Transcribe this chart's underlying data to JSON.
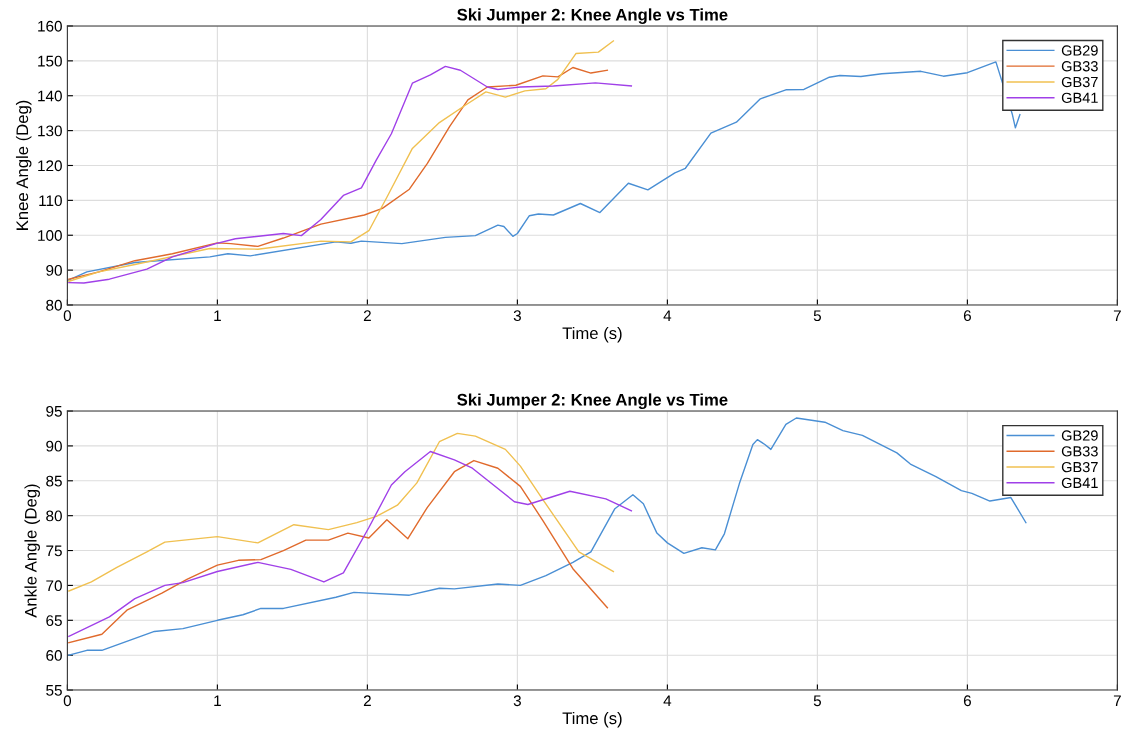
{
  "chart_data": [
    {
      "type": "line",
      "title": "Ski Jumper 2: Knee Angle vs Time",
      "xlabel": "Time (s)",
      "ylabel": "Knee Angle (Deg)",
      "xlim": [
        0,
        7
      ],
      "xticks": [
        0,
        1,
        2,
        3,
        4,
        5,
        6,
        7
      ],
      "ylim": [
        80,
        160
      ],
      "yticks": [
        80,
        90,
        100,
        110,
        120,
        130,
        140,
        150,
        160
      ],
      "grid": true,
      "legend": "top right",
      "line_style": "solid",
      "marker": "none",
      "series": [
        {
          "name": "GB29",
          "color": "#4a8fd4",
          "x": [
            0,
            0.13,
            0.45,
            0.95,
            1.07,
            1.22,
            1.79,
            1.89,
            1.96,
            2.23,
            2.52,
            2.72,
            2.87,
            2.91,
            2.97,
            3.0,
            3.08,
            3.14,
            3.24,
            3.42,
            3.55,
            3.74,
            3.87,
            4.05,
            4.12,
            4.29,
            4.46,
            4.62,
            4.79,
            4.91,
            5.08,
            5.15,
            5.29,
            5.43,
            5.69,
            5.84,
            6.0,
            6.19,
            6.3,
            6.32,
            6.35
          ],
          "values": [
            87,
            89.5,
            92.2,
            93.8,
            94.7,
            94.1,
            98.1,
            97.7,
            98.3,
            97.6,
            99.4,
            99.9,
            102.9,
            102.5,
            99.7,
            100.5,
            105.6,
            106.1,
            105.8,
            109.1,
            106.5,
            114.9,
            113,
            117.9,
            119.2,
            129.3,
            132.4,
            139.1,
            141.7,
            141.8,
            145.3,
            145.8,
            145.5,
            146.3,
            147,
            145.6,
            146.6,
            149.7,
            134.6,
            130.8,
            134.6
          ]
        },
        {
          "name": "GB33",
          "color": "#e06a2c",
          "x": [
            0.01,
            0.21,
            0.45,
            0.7,
            1.0,
            1.09,
            1.27,
            1.44,
            1.69,
            1.98,
            2.1,
            2.28,
            2.4,
            2.55,
            2.67,
            2.8,
            2.99,
            3.17,
            3.27,
            3.37,
            3.49,
            3.6
          ],
          "values": [
            87.4,
            89.5,
            92.7,
            94.7,
            97.8,
            97.6,
            96.8,
            99.2,
            103.2,
            105.8,
            107.7,
            113.2,
            120.6,
            131.3,
            138.8,
            142.5,
            143,
            145.7,
            145.4,
            148.1,
            146.5,
            147.3
          ]
        },
        {
          "name": "GB37",
          "color": "#f0c050",
          "x": [
            0.01,
            0.21,
            0.45,
            0.95,
            1.27,
            1.69,
            1.89,
            2.01,
            2.13,
            2.3,
            2.48,
            2.65,
            2.79,
            2.92,
            3.05,
            3.19,
            3.27,
            3.39,
            3.54,
            3.64
          ],
          "values": [
            86.8,
            89.5,
            91.6,
            96.2,
            96,
            98.3,
            98.1,
            101.3,
            110.9,
            124.9,
            132.3,
            137.2,
            141.1,
            139.6,
            141.4,
            142,
            144.7,
            152.1,
            152.5,
            155.7
          ]
        },
        {
          "name": "GB41",
          "color": "#a040e8",
          "x": [
            0.01,
            0.11,
            0.28,
            0.53,
            0.7,
            0.99,
            1.12,
            1.44,
            1.56,
            1.69,
            1.84,
            1.96,
            2.06,
            2.16,
            2.3,
            2.42,
            2.52,
            2.62,
            2.8,
            2.87,
            3.02,
            3.24,
            3.52,
            3.76
          ],
          "values": [
            86.4,
            86.3,
            87.4,
            90.3,
            93.8,
            97.6,
            99,
            100.5,
            99.9,
            104.5,
            111.4,
            113.6,
            121.6,
            129.1,
            143.6,
            146,
            148.4,
            147.3,
            142.5,
            141.8,
            142.5,
            142.8,
            143.7,
            142.8
          ]
        }
      ]
    },
    {
      "type": "line",
      "title": "Ski Jumper 2: Knee Angle vs Time",
      "xlabel": "Time (s)",
      "ylabel": "Ankle Angle (Deg)",
      "xlim": [
        0,
        7
      ],
      "xticks": [
        0,
        1,
        2,
        3,
        4,
        5,
        6,
        7
      ],
      "ylim": [
        55,
        95
      ],
      "yticks": [
        55,
        60,
        65,
        70,
        75,
        80,
        85,
        90,
        95
      ],
      "grid": true,
      "legend": "top right",
      "line_style": "solid",
      "marker": "none",
      "series": [
        {
          "name": "GB29",
          "color": "#4a8fd4",
          "x": [
            0.01,
            0.13,
            0.23,
            0.58,
            0.77,
            1.0,
            1.17,
            1.29,
            1.44,
            1.79,
            1.91,
            2.28,
            2.48,
            2.58,
            2.87,
            3.02,
            3.19,
            3.37,
            3.49,
            3.65,
            3.77,
            3.84,
            3.93,
            4.0,
            4.11,
            4.23,
            4.32,
            4.38,
            4.48,
            4.57,
            4.6,
            4.65,
            4.69,
            4.79,
            4.86,
            5.05,
            5.17,
            5.3,
            5.53,
            5.62,
            5.79,
            5.96,
            6.03,
            6.15,
            6.29,
            6.39
          ],
          "values": [
            60,
            60.7,
            60.7,
            63.4,
            63.8,
            65,
            65.8,
            66.7,
            66.7,
            68.3,
            69,
            68.6,
            69.6,
            69.5,
            70.2,
            70,
            71.4,
            73.3,
            74.8,
            81,
            83,
            81.7,
            77.5,
            76.1,
            74.6,
            75.4,
            75.1,
            77.4,
            84.6,
            90.2,
            90.9,
            90.2,
            89.5,
            93.1,
            94,
            93.4,
            92.2,
            91.5,
            89,
            87.4,
            85.6,
            83.6,
            83.2,
            82.1,
            82.6,
            79
          ]
        },
        {
          "name": "GB33",
          "color": "#e06a2c",
          "x": [
            0.01,
            0.23,
            0.4,
            0.63,
            0.8,
            1.0,
            1.14,
            1.29,
            1.44,
            1.59,
            1.74,
            1.87,
            2.01,
            2.13,
            2.27,
            2.4,
            2.58,
            2.71,
            2.87,
            3.02,
            3.17,
            3.37,
            3.6
          ],
          "values": [
            61.8,
            63,
            66.5,
            68.9,
            70.9,
            72.9,
            73.6,
            73.7,
            75,
            76.5,
            76.5,
            77.5,
            76.8,
            79.4,
            76.7,
            81.2,
            86.3,
            87.9,
            86.8,
            84.2,
            79.3,
            72.4,
            66.8
          ]
        },
        {
          "name": "GB37",
          "color": "#f0c050",
          "x": [
            0.01,
            0.16,
            0.33,
            0.53,
            0.65,
            1.0,
            1.27,
            1.51,
            1.74,
            1.93,
            2.06,
            2.2,
            2.33,
            2.48,
            2.6,
            2.72,
            2.92,
            3.02,
            3.17,
            3.41,
            3.64
          ],
          "values": [
            69.2,
            70.5,
            72.6,
            74.8,
            76.2,
            77,
            76.1,
            78.7,
            78,
            79,
            79.9,
            81.5,
            84.7,
            90.6,
            91.8,
            91.4,
            89.5,
            87.1,
            82.3,
            74.8,
            72
          ]
        },
        {
          "name": "GB41",
          "color": "#a040e8",
          "x": [
            0.01,
            0.28,
            0.45,
            0.65,
            0.77,
            1.0,
            1.27,
            1.49,
            1.71,
            1.84,
            2.01,
            2.16,
            2.25,
            2.42,
            2.58,
            2.7,
            2.98,
            3.07,
            3.35,
            3.59,
            3.76
          ],
          "values": [
            62.7,
            65.5,
            68.1,
            70,
            70.4,
            72,
            73.3,
            72.3,
            70.5,
            71.8,
            78.3,
            84.4,
            86.3,
            89.2,
            88,
            86.8,
            82,
            81.6,
            83.5,
            82.4,
            80.7
          ]
        }
      ]
    }
  ]
}
